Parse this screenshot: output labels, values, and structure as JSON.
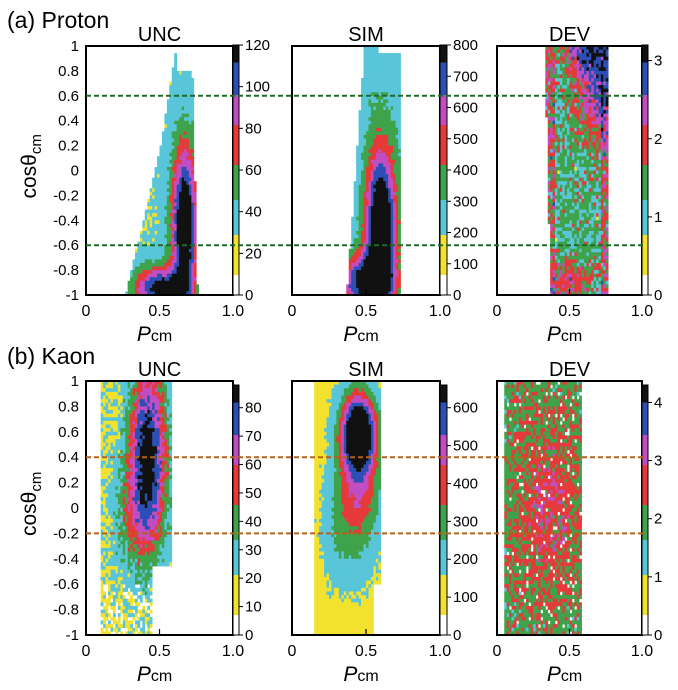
{
  "colors": {
    "yellow": "#f2e22e",
    "cyan": "#58c6d8",
    "green": "#3ea34a",
    "red": "#e63a3a",
    "magenta": "#c24dc2",
    "blue": "#2b4fb5",
    "black": "#111111",
    "green_dash": "#1e6b2a",
    "brown_dash": "#b5611c"
  },
  "chart_data": [
    {
      "type": "heatmap",
      "panel_label": "(a) Proton",
      "ylabel_main": "cosθ",
      "ylabel_sub": "cm",
      "xlabel_main": "P",
      "xlabel_sub": "cm",
      "x_ticks": [
        "0",
        "0.5",
        "1.0"
      ],
      "y_ticks": [
        "1",
        "0.8",
        "0.6",
        "0.4",
        "0.2",
        "0",
        "-0.2",
        "-0.4",
        "-0.6",
        "-0.8",
        "-1"
      ],
      "xlim": [
        0,
        1.0
      ],
      "ylim": [
        -1,
        1
      ],
      "cut_lines": [
        0.6,
        -0.6
      ],
      "line_color_key": "green_dash",
      "panels": [
        {
          "title": "UNC",
          "colorbar_ticks": [
            "120",
            "100",
            "80",
            "60",
            "40",
            "20",
            "0"
          ],
          "zmax": 120
        },
        {
          "title": "SIM",
          "colorbar_ticks": [
            "800",
            "700",
            "600",
            "500",
            "400",
            "300",
            "200",
            "100",
            "0"
          ],
          "zmax": 800
        },
        {
          "title": "DEV",
          "colorbar_ticks": [
            "3",
            "2",
            "1",
            "0"
          ],
          "zmax": 3.2
        }
      ]
    },
    {
      "type": "heatmap",
      "panel_label": "(b) Kaon",
      "ylabel_main": "cosθ",
      "ylabel_sub": "cm",
      "xlabel_main": "P",
      "xlabel_sub": "cm",
      "x_ticks": [
        "0",
        "0.5",
        "1.0"
      ],
      "y_ticks": [
        "1",
        "0.8",
        "0.6",
        "0.4",
        "0.2",
        "0",
        "-0.2",
        "-0.4",
        "-0.6",
        "-0.8",
        "-1"
      ],
      "xlim": [
        0,
        1.0
      ],
      "ylim": [
        -1,
        1
      ],
      "cut_lines": [
        0.4,
        -0.2
      ],
      "line_color_key": "brown_dash",
      "panels": [
        {
          "title": "UNC",
          "colorbar_ticks": [
            "80",
            "70",
            "60",
            "50",
            "40",
            "30",
            "20",
            "10",
            "0"
          ],
          "zmax": 88
        },
        {
          "title": "SIM",
          "colorbar_ticks": [
            "600",
            "500",
            "400",
            "300",
            "200",
            "100",
            "0"
          ],
          "zmax": 660
        },
        {
          "title": "DEV",
          "colorbar_ticks": [
            "4",
            "3",
            "2",
            "1",
            "0"
          ],
          "zmax": 4.3
        }
      ]
    }
  ]
}
